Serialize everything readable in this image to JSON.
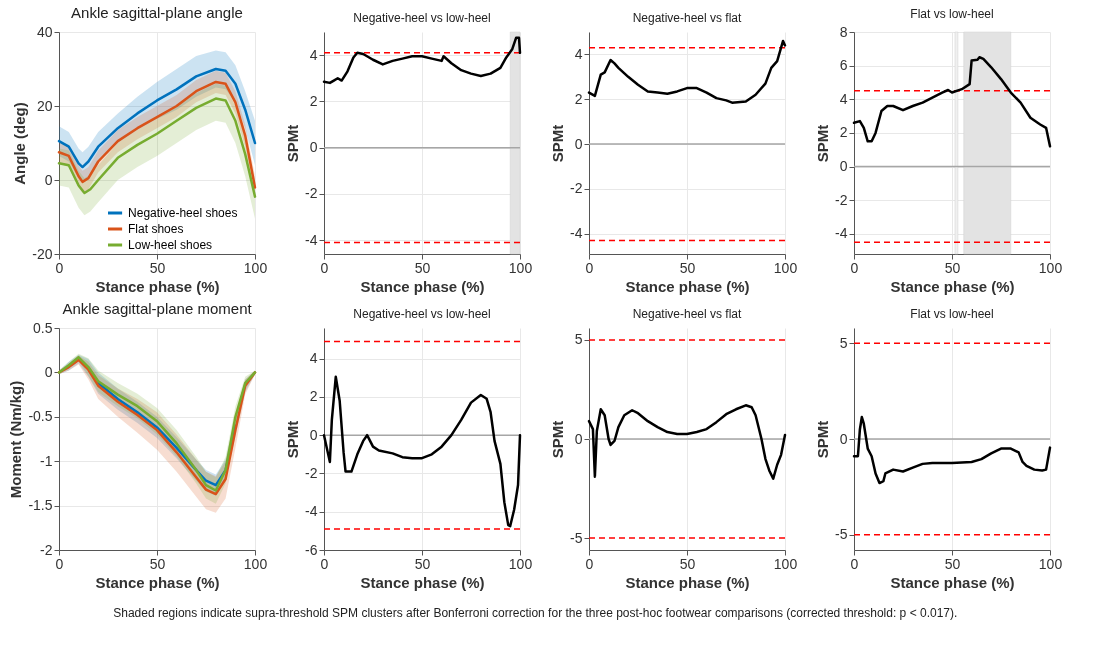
{
  "chart_data": [
    {
      "type": "line",
      "title": "Ankle sagittal-plane angle",
      "xlabel": "Stance phase (%)",
      "ylabel": "Angle (deg)",
      "xlim": [
        0,
        100
      ],
      "xticks": [
        0,
        50,
        100
      ],
      "ylim": [
        -20,
        40
      ],
      "yticks": [
        -20,
        0,
        20,
        40
      ],
      "grid": true,
      "legend": "bottom",
      "series": [
        {
          "name": "Negative-heel shoes",
          "color": "#0072bd",
          "x": [
            0,
            5,
            10,
            12,
            15,
            20,
            30,
            40,
            50,
            60,
            70,
            80,
            85,
            90,
            95,
            100
          ],
          "values": [
            10.5,
            9,
            4.5,
            3.5,
            5,
            9,
            14,
            18,
            21.5,
            24.5,
            28,
            30,
            29.5,
            26,
            19,
            10
          ],
          "upper": [
            14.5,
            13,
            8.5,
            7.5,
            9,
            13,
            18,
            22.5,
            26.5,
            30,
            33.5,
            35,
            34.5,
            31,
            24,
            16
          ],
          "lower": [
            6.5,
            5,
            0.5,
            -0.5,
            1,
            5,
            10,
            13.5,
            16.5,
            19,
            22.5,
            25,
            24.5,
            21,
            14,
            4
          ]
        },
        {
          "name": "Flat shoes",
          "color": "#d95319",
          "x": [
            0,
            5,
            10,
            12,
            15,
            20,
            30,
            40,
            50,
            60,
            70,
            80,
            85,
            90,
            95,
            100
          ],
          "values": [
            7.5,
            6.5,
            1,
            -0.5,
            0.5,
            5,
            10.5,
            14,
            17,
            20,
            24,
            26.5,
            26,
            21,
            12,
            -2
          ],
          "upper": [
            10.5,
            9.5,
            4,
            2.5,
            3.5,
            8,
            13.5,
            17,
            20,
            23,
            27,
            29.5,
            29,
            24,
            15,
            1
          ],
          "lower": [
            4.5,
            3.5,
            -2,
            -3.5,
            -2.5,
            2,
            7.5,
            11,
            14,
            17,
            21,
            23.5,
            23,
            18,
            9,
            -5
          ]
        },
        {
          "name": "Low-heel shoes",
          "color": "#77ac30",
          "x": [
            0,
            5,
            10,
            13,
            16,
            20,
            30,
            40,
            50,
            60,
            70,
            80,
            85,
            90,
            95,
            100
          ],
          "values": [
            4.5,
            4,
            -1.5,
            -3.5,
            -2.5,
            0,
            6,
            9.5,
            12.5,
            16,
            19.5,
            22,
            21.5,
            16,
            7,
            -4.5
          ],
          "upper": [
            8.5,
            8,
            2.5,
            0.5,
            1.5,
            4,
            10,
            13.5,
            16.5,
            20,
            23.5,
            26,
            25.5,
            20,
            11,
            -0.5
          ],
          "lower": [
            -1.5,
            -2,
            -7.5,
            -9.5,
            -8.5,
            -6,
            0,
            3.5,
            6.5,
            10,
            13.5,
            16,
            15.5,
            10,
            1,
            -10.5
          ]
        }
      ]
    },
    {
      "type": "line",
      "title": "Negative-heel vs low-heel",
      "xlabel": "Stance phase (%)",
      "ylabel": "SPMt",
      "xlim": [
        0,
        100
      ],
      "xticks": [
        0,
        50,
        100
      ],
      "ylim": [
        -4.6,
        5
      ],
      "yticks": [
        -4,
        -2,
        0,
        2,
        4
      ],
      "grid": true,
      "bands": [
        {
          "axis": "x",
          "from": 95,
          "to": 100,
          "color": "#e3e3e3"
        }
      ],
      "ref_lines": [
        {
          "axis": "y",
          "value": 0,
          "color": "#a6a6a6",
          "line_style": "solid"
        },
        {
          "axis": "y",
          "value": 4.1,
          "color": "#ff0000",
          "line_style": "dashed"
        },
        {
          "axis": "y",
          "value": -4.1,
          "color": "#ff0000",
          "line_style": "dashed"
        }
      ],
      "series": [
        {
          "color": "#000000",
          "x": [
            0,
            3,
            5,
            7,
            9,
            12,
            15,
            17,
            20,
            25,
            30,
            35,
            40,
            45,
            50,
            55,
            60,
            61,
            65,
            70,
            75,
            80,
            85,
            90,
            93,
            96,
            98,
            99.5,
            100
          ],
          "values": [
            2.85,
            2.8,
            2.9,
            3.0,
            2.9,
            3.3,
            3.9,
            4.1,
            4.05,
            3.8,
            3.6,
            3.75,
            3.85,
            3.95,
            3.95,
            3.85,
            3.75,
            3.95,
            3.65,
            3.35,
            3.2,
            3.1,
            3.2,
            3.45,
            3.9,
            4.25,
            4.75,
            4.75,
            4.1
          ]
        }
      ]
    },
    {
      "type": "line",
      "title": "Negative-heel vs flat",
      "xlabel": "Stance phase (%)",
      "ylabel": "SPMt",
      "xlim": [
        0,
        100
      ],
      "xticks": [
        0,
        50,
        100
      ],
      "ylim": [
        -4.9,
        5
      ],
      "yticks": [
        -4,
        -2,
        0,
        2,
        4
      ],
      "grid": true,
      "ref_lines": [
        {
          "axis": "y",
          "value": 0,
          "color": "#a6a6a6",
          "line_style": "solid"
        },
        {
          "axis": "y",
          "value": 4.3,
          "color": "#ff0000",
          "line_style": "dashed"
        },
        {
          "axis": "y",
          "value": -4.3,
          "color": "#ff0000",
          "line_style": "dashed"
        }
      ],
      "series": [
        {
          "color": "#000000",
          "x": [
            0,
            3,
            6,
            8,
            11,
            13,
            15,
            20,
            25,
            30,
            35,
            40,
            45,
            50,
            55,
            60,
            65,
            70,
            73,
            80,
            85,
            90,
            93,
            96,
            98,
            99,
            100
          ],
          "values": [
            2.3,
            2.15,
            3.1,
            3.2,
            3.75,
            3.6,
            3.4,
            3.0,
            2.65,
            2.35,
            2.3,
            2.25,
            2.35,
            2.5,
            2.5,
            2.3,
            2.05,
            1.95,
            1.85,
            1.9,
            2.2,
            2.7,
            3.4,
            3.7,
            4.3,
            4.6,
            4.4
          ]
        }
      ]
    },
    {
      "type": "line",
      "title": "Flat vs low-heel",
      "xlabel": "Stance phase (%)",
      "ylabel": "SPMt",
      "xlim": [
        0,
        100
      ],
      "xticks": [
        0,
        50,
        100
      ],
      "ylim": [
        -5.2,
        8
      ],
      "yticks": [
        -4,
        -2,
        0,
        2,
        4,
        6,
        8
      ],
      "grid": true,
      "bands": [
        {
          "axis": "x",
          "from": 51.5,
          "to": 53,
          "color": "#f0f0f0"
        },
        {
          "axis": "x",
          "from": 56,
          "to": 80,
          "color": "#e3e3e3"
        }
      ],
      "ref_lines": [
        {
          "axis": "y",
          "value": 0,
          "color": "#a6a6a6",
          "line_style": "solid"
        },
        {
          "axis": "y",
          "value": 4.5,
          "color": "#ff0000",
          "line_style": "dashed"
        },
        {
          "axis": "y",
          "value": -4.5,
          "color": "#ff0000",
          "line_style": "dashed"
        }
      ],
      "series": [
        {
          "color": "#000000",
          "x": [
            0,
            3,
            5,
            7,
            9,
            11,
            14,
            17,
            20,
            25,
            30,
            35,
            40,
            45,
            48,
            50,
            55,
            59,
            60,
            63,
            64,
            66,
            70,
            75,
            80,
            85,
            90,
            95,
            98,
            100
          ],
          "values": [
            2.6,
            2.7,
            2.3,
            1.5,
            1.5,
            2.0,
            3.3,
            3.6,
            3.6,
            3.35,
            3.6,
            3.8,
            4.1,
            4.4,
            4.55,
            4.4,
            4.6,
            4.9,
            6.3,
            6.35,
            6.5,
            6.4,
            5.9,
            5.2,
            4.4,
            3.8,
            2.9,
            2.5,
            2.3,
            1.2
          ]
        }
      ]
    },
    {
      "type": "line",
      "title": "Ankle sagittal-plane moment",
      "xlabel": "Stance phase (%)",
      "ylabel": "Moment (Nm/kg)",
      "xlim": [
        0,
        100
      ],
      "xticks": [
        0,
        50,
        100
      ],
      "ylim": [
        -2,
        0.5
      ],
      "yticks": [
        -2,
        -1.5,
        -1,
        -0.5,
        0,
        0.5
      ],
      "grid": true,
      "series": [
        {
          "color": "#0072bd",
          "x": [
            0,
            5,
            10,
            15,
            20,
            30,
            40,
            50,
            60,
            70,
            75,
            80,
            85,
            90,
            95,
            100
          ],
          "values": [
            null,
            null,
            null,
            null,
            -0.12,
            -0.3,
            -0.45,
            -0.62,
            -0.85,
            -1.1,
            -1.22,
            -1.27,
            -1.1,
            -0.6,
            null,
            null
          ],
          "upper": [
            0.02,
            0.12,
            0.2,
            0.15,
            0,
            -0.18,
            -0.33,
            -0.5,
            -0.73,
            -0.98,
            -1.1,
            -1.15,
            -0.98,
            -0.48,
            -0.08,
            0.02
          ],
          "lower": [
            -0.02,
            0.02,
            0.1,
            -0.05,
            -0.24,
            -0.42,
            -0.57,
            -0.74,
            -0.97,
            -1.22,
            -1.34,
            -1.39,
            -1.22,
            -0.72,
            -0.22,
            -0.02
          ]
        },
        {
          "color": "#d95319",
          "x": [
            0,
            5,
            10,
            15,
            20,
            30,
            40,
            50,
            60,
            70,
            75,
            80,
            85,
            90,
            95,
            100
          ],
          "values": [
            0,
            0.06,
            0.14,
            0.03,
            -0.15,
            -0.33,
            -0.48,
            -0.65,
            -0.9,
            -1.18,
            -1.32,
            -1.37,
            -1.2,
            -0.65,
            -0.15,
            0
          ],
          "upper": [
            0.02,
            0.1,
            0.19,
            0.12,
            -0.03,
            -0.18,
            -0.3,
            -0.45,
            -0.7,
            -0.98,
            -1.12,
            -1.17,
            -1.0,
            -0.5,
            -0.08,
            0.02
          ],
          "lower": [
            -0.02,
            0.02,
            0.09,
            -0.08,
            -0.3,
            -0.5,
            -0.68,
            -0.87,
            -1.12,
            -1.4,
            -1.54,
            -1.58,
            -1.42,
            -0.85,
            -0.25,
            -0.02
          ]
        },
        {
          "color": "#77ac30",
          "x": [
            0,
            5,
            10,
            15,
            20,
            30,
            40,
            50,
            60,
            70,
            75,
            80,
            85,
            90,
            95,
            100
          ],
          "values": [
            0,
            0.08,
            0.17,
            0.06,
            -0.1,
            -0.25,
            -0.38,
            -0.55,
            -0.8,
            -1.1,
            -1.27,
            -1.33,
            -1.1,
            -0.5,
            -0.12,
            0
          ],
          "upper": [
            0.02,
            0.12,
            0.21,
            0.16,
            0.02,
            -0.12,
            -0.24,
            -0.4,
            -0.65,
            -0.95,
            -1.12,
            -1.18,
            -0.95,
            -0.38,
            -0.05,
            0.02
          ],
          "lower": [
            -0.02,
            0.04,
            0.13,
            -0.04,
            -0.22,
            -0.38,
            -0.52,
            -0.7,
            -0.95,
            -1.25,
            -1.42,
            -1.48,
            -1.25,
            -0.62,
            -0.19,
            -0.02
          ]
        }
      ]
    },
    {
      "type": "line",
      "title": "Negative-heel vs low-heel",
      "xlabel": "Stance phase (%)",
      "ylabel": "SPMt",
      "xlim": [
        0,
        100
      ],
      "xticks": [
        0,
        50,
        100
      ],
      "ylim": [
        -6,
        5.6
      ],
      "yticks": [
        -6,
        -4,
        -2,
        0,
        2,
        4
      ],
      "grid": true,
      "ref_lines": [
        {
          "axis": "y",
          "value": 0,
          "color": "#a6a6a6",
          "line_style": "solid"
        },
        {
          "axis": "y",
          "value": 4.9,
          "color": "#ff0000",
          "line_style": "dashed"
        },
        {
          "axis": "y",
          "value": -4.9,
          "color": "#ff0000",
          "line_style": "dashed"
        }
      ],
      "series": [
        {
          "color": "#000000",
          "x": [
            0,
            3,
            4,
            6,
            8,
            10,
            11,
            14,
            17,
            20,
            22,
            25,
            28,
            35,
            40,
            45,
            50,
            55,
            60,
            65,
            70,
            75,
            80,
            83,
            85,
            87,
            90,
            92,
            94,
            95,
            97,
            99,
            100
          ],
          "values": [
            0,
            -1.4,
            0.8,
            3.05,
            1.8,
            -0.9,
            -1.9,
            -1.9,
            -1.0,
            -0.3,
            0,
            -0.6,
            -0.8,
            -0.95,
            -1.15,
            -1.2,
            -1.2,
            -1.0,
            -0.6,
            0,
            0.8,
            1.7,
            2.1,
            1.9,
            1.2,
            -0.3,
            -1.5,
            -3.5,
            -4.7,
            -4.75,
            -3.9,
            -2.6,
            0
          ]
        }
      ]
    },
    {
      "type": "line",
      "title": "Negative-heel vs flat",
      "xlabel": "Stance phase (%)",
      "ylabel": "SPMt",
      "xlim": [
        0,
        100
      ],
      "xticks": [
        0,
        50,
        100
      ],
      "ylim": [
        -5.6,
        5.6
      ],
      "yticks": [
        -5,
        0,
        5
      ],
      "grid": true,
      "ref_lines": [
        {
          "axis": "y",
          "value": 0,
          "color": "#a6a6a6",
          "line_style": "solid"
        },
        {
          "axis": "y",
          "value": 5,
          "color": "#ff0000",
          "line_style": "dashed"
        },
        {
          "axis": "y",
          "value": -5,
          "color": "#ff0000",
          "line_style": "dashed"
        }
      ],
      "series": [
        {
          "color": "#000000",
          "x": [
            0,
            2,
            3,
            4,
            6,
            8,
            10,
            11,
            13,
            15,
            18,
            22,
            25,
            30,
            35,
            40,
            45,
            50,
            55,
            60,
            65,
            70,
            75,
            80,
            83,
            85,
            88,
            90,
            92,
            94,
            96,
            98,
            100
          ],
          "values": [
            0.9,
            0.5,
            -1.9,
            0.4,
            1.5,
            1.2,
            0,
            -0.3,
            -0.1,
            0.6,
            1.2,
            1.45,
            1.3,
            0.9,
            0.6,
            0.35,
            0.25,
            0.25,
            0.35,
            0.5,
            0.85,
            1.25,
            1.5,
            1.7,
            1.6,
            1.2,
            0,
            -1.0,
            -1.6,
            -2.0,
            -1.3,
            -0.8,
            0.2
          ]
        }
      ]
    },
    {
      "type": "line",
      "title": "Flat vs low-heel",
      "xlabel": "Stance phase (%)",
      "ylabel": "SPMt",
      "xlim": [
        0,
        100
      ],
      "xticks": [
        0,
        50,
        100
      ],
      "ylim": [
        -5.8,
        5.8
      ],
      "yticks": [
        -5,
        0,
        5
      ],
      "grid": true,
      "ref_lines": [
        {
          "axis": "y",
          "value": 0,
          "color": "#a6a6a6",
          "line_style": "solid"
        },
        {
          "axis": "y",
          "value": 5,
          "color": "#ff0000",
          "line_style": "dashed"
        },
        {
          "axis": "y",
          "value": -5,
          "color": "#ff0000",
          "line_style": "dashed"
        }
      ],
      "annotations": [
        "Shaded regions indicate supra-threshold SPM clusters after Bonferroni correction for the three post-hoc footwear comparisons (corrected threshold: p < 0.017)."
      ],
      "series": [
        {
          "color": "#000000",
          "x": [
            0,
            2,
            3,
            4,
            5,
            7,
            9,
            11,
            13,
            15,
            16,
            20,
            25,
            30,
            35,
            40,
            50,
            60,
            65,
            70,
            75,
            80,
            84,
            86,
            88,
            92,
            96,
            98,
            100
          ],
          "values": [
            -0.9,
            -0.9,
            0.5,
            1.15,
            0.8,
            -0.5,
            -0.9,
            -1.8,
            -2.3,
            -2.2,
            -1.8,
            -1.6,
            -1.7,
            -1.5,
            -1.3,
            -1.25,
            -1.25,
            -1.2,
            -1.05,
            -0.75,
            -0.5,
            -0.5,
            -0.7,
            -1.2,
            -1.4,
            -1.6,
            -1.65,
            -1.6,
            -0.45
          ]
        }
      ]
    }
  ]
}
